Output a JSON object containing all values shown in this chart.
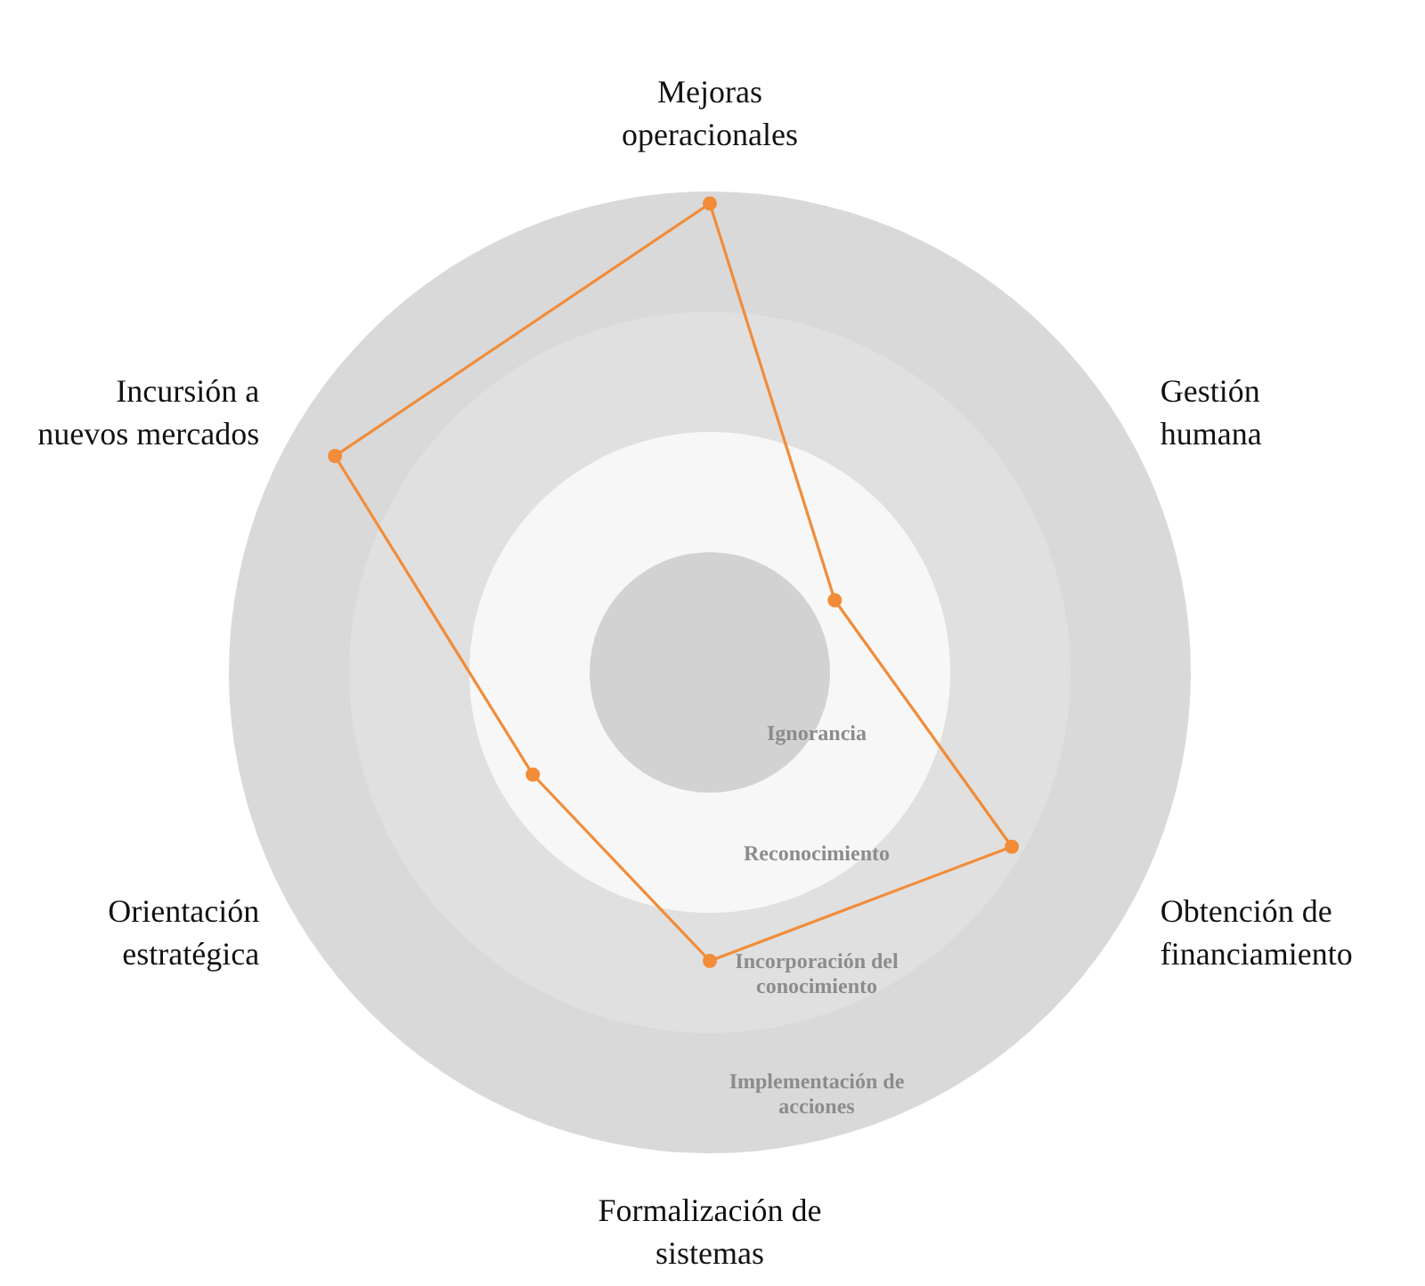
{
  "chart_data": {
    "type": "radar",
    "categories": [
      "Mejoras operacionales",
      "Gestión humana",
      "Obtención de financiamiento",
      "Formalización de sistemas",
      "Orientación estratégica",
      "Incursión a nuevos mercados"
    ],
    "series": [
      {
        "color": "#f28c38",
        "values": [
          3.9,
          1.2,
          2.9,
          2.4,
          1.7,
          3.6
        ]
      }
    ],
    "ylim": [
      0,
      4
    ],
    "yticks": [
      {
        "value": 0.5,
        "label": "Ignorancia"
      },
      {
        "value": 1.5,
        "label": "Reconocimiento"
      },
      {
        "value": 2.5,
        "label": "Incorporación del conocimiento"
      },
      {
        "value": 3.5,
        "label": "Implementación de acciones"
      }
    ],
    "marker": "circle",
    "line_style": "solid",
    "grid": true
  }
}
